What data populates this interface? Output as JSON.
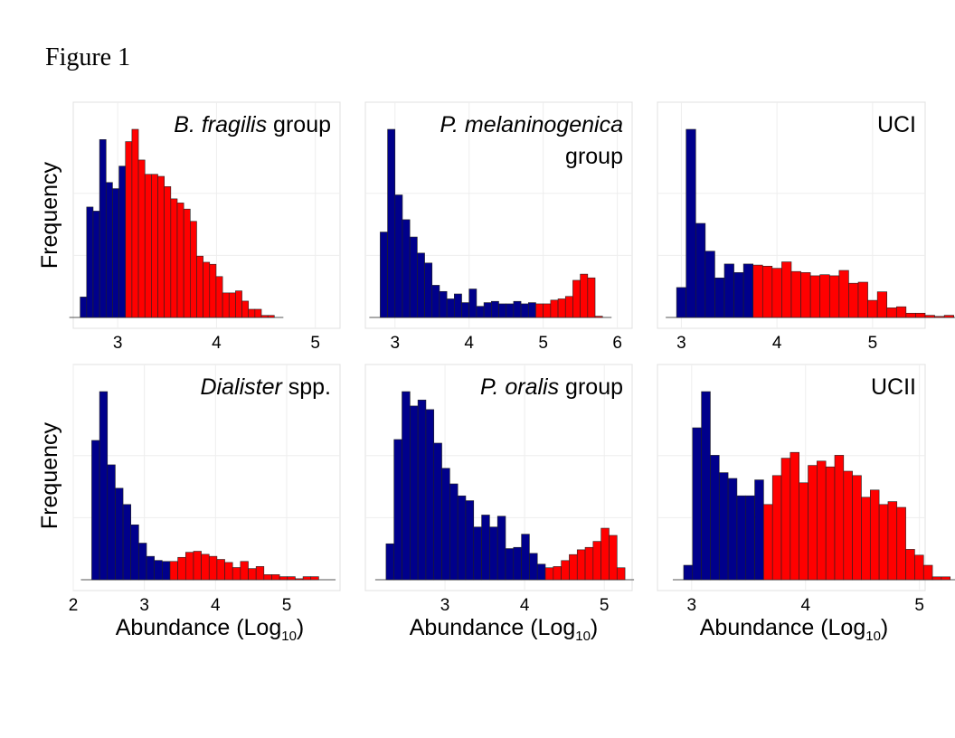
{
  "figure_label": "Figure 1",
  "colors": {
    "low": "#00008b",
    "high": "#ff0000",
    "grid": "#eeeeee",
    "border": "#e0e0e0"
  },
  "ylabel": "Frequency",
  "xlabel_main": "Abundance (Log",
  "xlabel_sub": "10",
  "xlabel_close": ")",
  "chart_data": [
    {
      "type": "bar",
      "title_italic": "B. fragilis",
      "title_plain": " group",
      "xlim": [
        2.55,
        5.25
      ],
      "xticks": [
        3,
        4,
        5
      ],
      "bin_start": 2.62,
      "bin_width": 0.0655,
      "split": 7,
      "counts": [
        10,
        54,
        52,
        87,
        66,
        63,
        74,
        86,
        92,
        77,
        70,
        70,
        69,
        64,
        58,
        56,
        53,
        47,
        30,
        27,
        26,
        20,
        12,
        12,
        13,
        8,
        4,
        4,
        1,
        1
      ]
    },
    {
      "type": "bar",
      "title_italic": "P. melaninogenica",
      "title_plain": "group",
      "xlim": [
        2.6,
        6.2
      ],
      "xticks": [
        3,
        4,
        5,
        6
      ],
      "bin_start": 2.8,
      "bin_width": 0.1,
      "split": 21,
      "counts": [
        69,
        152,
        99,
        79,
        65,
        52,
        44,
        26,
        21,
        15,
        19,
        12,
        23,
        9,
        12,
        13,
        11,
        11,
        13,
        11,
        12,
        11,
        11,
        14,
        15,
        17,
        30,
        35,
        32,
        1
      ]
    },
    {
      "type": "bar",
      "title_italic": "",
      "title_plain": "UCI",
      "xlim": [
        2.75,
        5.55
      ],
      "xticks": [
        3,
        4,
        5
      ],
      "bin_start": 2.95,
      "bin_width": 0.1,
      "split": 8,
      "counts": [
        28,
        176,
        88,
        62,
        37,
        50,
        42,
        50,
        49,
        48,
        46,
        52,
        43,
        42,
        39,
        40,
        39,
        44,
        32,
        33,
        16,
        24,
        9,
        10,
        4,
        4,
        2,
        1,
        2,
        0
      ]
    },
    {
      "type": "bar",
      "title_italic": "Dialister",
      "title_plain": " spp.",
      "xlim": [
        2.0,
        5.75
      ],
      "xticks": [
        2,
        3,
        4,
        5
      ],
      "bin_start": 2.26,
      "bin_width": 0.11,
      "split": 10,
      "counts": [
        137,
        185,
        113,
        90,
        74,
        54,
        36,
        23,
        19,
        18,
        18,
        22,
        27,
        28,
        25,
        23,
        20,
        17,
        12,
        18,
        11,
        13,
        5,
        5,
        3,
        3,
        1,
        3,
        3,
        0
      ]
    },
    {
      "type": "bar",
      "title_italic": "P. oralis",
      "title_plain": " group",
      "xlim": [
        2.0,
        5.35
      ],
      "xticks": [
        3,
        4,
        5
      ],
      "bin_start": 2.26,
      "bin_width": 0.1,
      "split": 20,
      "counts": [
        30,
        117,
        157,
        145,
        150,
        142,
        114,
        93,
        80,
        70,
        66,
        44,
        54,
        44,
        53,
        26,
        27,
        38,
        22,
        13,
        10,
        11,
        16,
        21,
        25,
        27,
        32,
        43,
        37,
        10
      ]
    },
    {
      "type": "bar",
      "title_italic": "",
      "title_plain": "UCII",
      "xlim": [
        2.7,
        5.05
      ],
      "xticks": [
        3,
        4,
        5
      ],
      "bin_start": 2.93,
      "bin_width": 0.078,
      "split": 9,
      "counts": [
        10,
        105,
        130,
        86,
        74,
        70,
        58,
        58,
        69,
        52,
        72,
        84,
        88,
        67,
        79,
        82,
        78,
        86,
        75,
        72,
        57,
        62,
        52,
        54,
        50,
        21,
        17,
        10,
        2,
        2
      ]
    }
  ]
}
